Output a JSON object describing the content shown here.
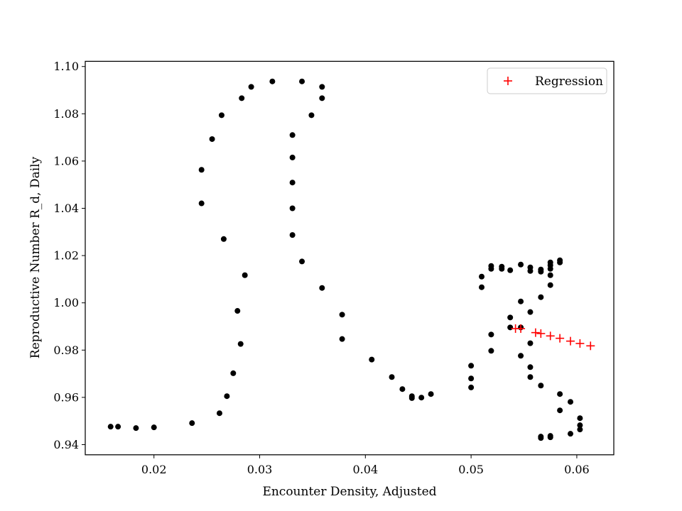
{
  "chart_data": {
    "type": "scatter",
    "title": "",
    "xlabel": "Encounter Density, Adjusted",
    "ylabel": "Reproductive Number R_d, Daily",
    "xlim": [
      0.0135,
      0.0635
    ],
    "ylim": [
      0.9357,
      1.1022
    ],
    "xticks": [
      0.02,
      0.03,
      0.04,
      0.05,
      0.06
    ],
    "xtick_labels": [
      "0.02",
      "0.03",
      "0.04",
      "0.05",
      "0.06"
    ],
    "yticks": [
      0.94,
      0.96,
      0.98,
      1.0,
      1.02,
      1.04,
      1.06,
      1.08,
      1.1
    ],
    "ytick_labels": [
      "0.94",
      "0.96",
      "0.98",
      "1.00",
      "1.02",
      "1.04",
      "1.06",
      "1.08",
      "1.10"
    ],
    "grid": false,
    "legend_position": "top-right",
    "series": [
      {
        "marker": "dot",
        "color": "#000000",
        "points": [
          [
            0.0159,
            0.9476
          ],
          [
            0.0166,
            0.9476
          ],
          [
            0.0183,
            0.947
          ],
          [
            0.02,
            0.9473
          ],
          [
            0.0236,
            0.9491
          ],
          [
            0.0262,
            0.9533
          ],
          [
            0.0269,
            0.9605
          ],
          [
            0.0275,
            0.9702
          ],
          [
            0.0282,
            0.9826
          ],
          [
            0.0279,
            0.9966
          ],
          [
            0.0286,
            1.0117
          ],
          [
            0.0266,
            1.027
          ],
          [
            0.0245,
            1.0421
          ],
          [
            0.0245,
            1.0563
          ],
          [
            0.0255,
            1.0693
          ],
          [
            0.0264,
            1.0794
          ],
          [
            0.0283,
            1.0866
          ],
          [
            0.0292,
            1.0914
          ],
          [
            0.0312,
            1.0937
          ],
          [
            0.034,
            1.0937
          ],
          [
            0.0359,
            1.0914
          ],
          [
            0.0359,
            1.0866
          ],
          [
            0.0349,
            1.0794
          ],
          [
            0.0331,
            1.071
          ],
          [
            0.0331,
            1.0615
          ],
          [
            0.0331,
            1.0509
          ],
          [
            0.0331,
            1.04
          ],
          [
            0.0331,
            1.0287
          ],
          [
            0.034,
            1.0175
          ],
          [
            0.0359,
            1.0063
          ],
          [
            0.0378,
            0.995
          ],
          [
            0.0378,
            0.9847
          ],
          [
            0.0406,
            0.976
          ],
          [
            0.0425,
            0.9686
          ],
          [
            0.0435,
            0.9635
          ],
          [
            0.0444,
            0.9605
          ],
          [
            0.0444,
            0.9597
          ],
          [
            0.0453,
            0.9599
          ],
          [
            0.0462,
            0.9614
          ],
          [
            0.05,
            0.9642
          ],
          [
            0.05,
            0.968
          ],
          [
            0.05,
            0.9734
          ],
          [
            0.0519,
            0.9797
          ],
          [
            0.0519,
            0.9866
          ],
          [
            0.0537,
            0.9896
          ],
          [
            0.0537,
            0.9938
          ],
          [
            0.051,
            1.0066
          ],
          [
            0.051,
            1.0111
          ],
          [
            0.0519,
            1.0144
          ],
          [
            0.0519,
            1.0156
          ],
          [
            0.0529,
            1.0153
          ],
          [
            0.0529,
            1.0144
          ],
          [
            0.0537,
            1.0138
          ],
          [
            0.0547,
            1.0162
          ],
          [
            0.0556,
            1.015
          ],
          [
            0.0556,
            1.0135
          ],
          [
            0.0566,
            1.0132
          ],
          [
            0.0566,
            1.0141
          ],
          [
            0.0575,
            1.0144
          ],
          [
            0.0575,
            1.0159
          ],
          [
            0.0575,
            1.0171
          ],
          [
            0.0584,
            1.0171
          ],
          [
            0.0584,
            1.018
          ],
          [
            0.0575,
            1.0117
          ],
          [
            0.0575,
            1.0075
          ],
          [
            0.0566,
            1.0024
          ],
          [
            0.0547,
            1.0006
          ],
          [
            0.0556,
            0.9961
          ],
          [
            0.0547,
            0.9896
          ],
          [
            0.0556,
            0.9829
          ],
          [
            0.0547,
            0.9776
          ],
          [
            0.0556,
            0.9728
          ],
          [
            0.0556,
            0.9686
          ],
          [
            0.0566,
            0.965
          ],
          [
            0.0584,
            0.9614
          ],
          [
            0.0594,
            0.9581
          ],
          [
            0.0584,
            0.9545
          ],
          [
            0.0603,
            0.9512
          ],
          [
            0.0603,
            0.9482
          ],
          [
            0.0603,
            0.9464
          ],
          [
            0.0594,
            0.9446
          ],
          [
            0.0575,
            0.9431
          ],
          [
            0.0575,
            0.9437
          ],
          [
            0.0566,
            0.9428
          ],
          [
            0.0566,
            0.9434
          ]
        ]
      },
      {
        "name": "Regression",
        "marker": "plus",
        "color": "#ff0000",
        "points": [
          [
            0.0542,
            0.9891
          ],
          [
            0.0547,
            0.9891
          ],
          [
            0.0561,
            0.9874
          ],
          [
            0.0566,
            0.987
          ],
          [
            0.0575,
            0.986
          ],
          [
            0.0584,
            0.985
          ],
          [
            0.0594,
            0.9838
          ],
          [
            0.0603,
            0.9828
          ],
          [
            0.0613,
            0.9818
          ]
        ]
      }
    ]
  }
}
